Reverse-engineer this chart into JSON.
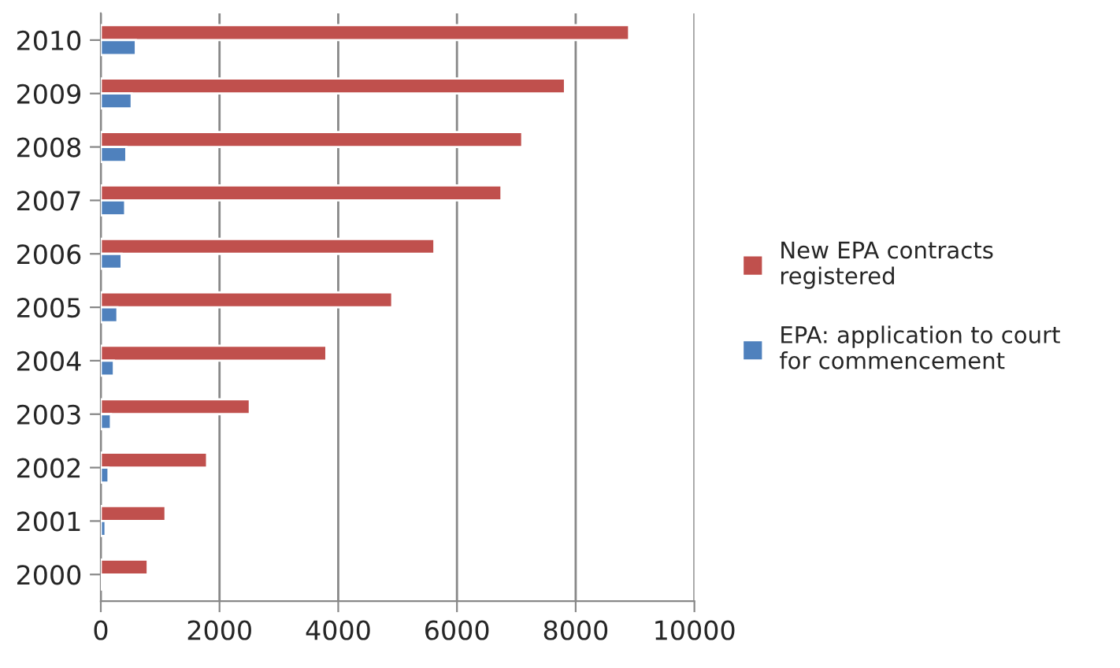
{
  "chart_data": {
    "type": "bar",
    "orientation": "horizontal",
    "categories": [
      "2010",
      "2009",
      "2008",
      "2007",
      "2006",
      "2005",
      "2004",
      "2003",
      "2002",
      "2001",
      "2000"
    ],
    "series": [
      {
        "name": "New EPA contracts\nregistered",
        "color": "#c0504d",
        "values": [
          8900,
          7820,
          7100,
          6750,
          5620,
          4910,
          3800,
          2510,
          1790,
          1090,
          790
        ]
      },
      {
        "name": "EPA: application to court\nfor commencement",
        "color": "#4f81bd",
        "values": [
          590,
          520,
          430,
          410,
          350,
          280,
          220,
          170,
          130,
          80,
          30
        ]
      }
    ],
    "xlim": [
      0,
      10000
    ],
    "xticks": [
      0,
      2000,
      4000,
      6000,
      8000,
      10000
    ],
    "grid": "x",
    "legend": "right"
  }
}
